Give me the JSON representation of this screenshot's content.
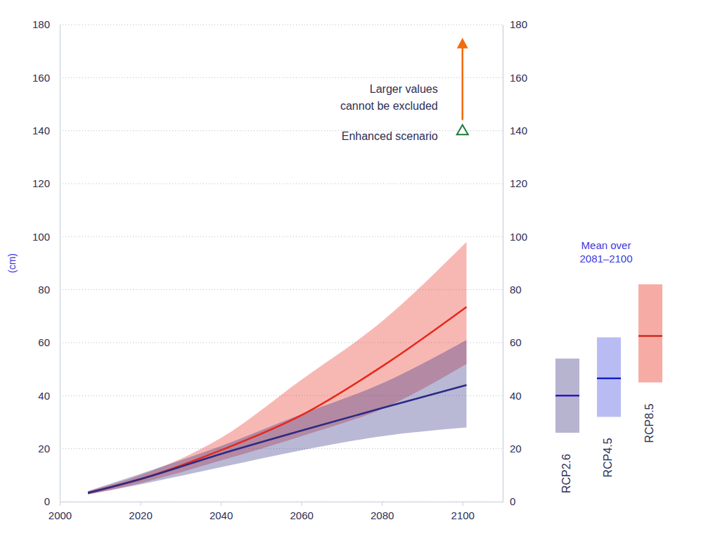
{
  "chart_data": [
    {
      "type": "line",
      "y_label": "(cm)",
      "x": [
        2007,
        2020,
        2040,
        2060,
        2080,
        2101
      ],
      "xlim": [
        2000,
        2110
      ],
      "xticks": [
        2000,
        2020,
        2040,
        2060,
        2080,
        2100
      ],
      "ylim": [
        0,
        180
      ],
      "yticks": [
        0,
        20,
        40,
        60,
        80,
        100,
        120,
        140,
        160,
        180
      ],
      "grid": true,
      "series": [
        {
          "color": "#e8271a",
          "values": [
            3.3,
            8.5,
            19.4,
            32.6,
            51,
            73.5
          ],
          "lower": [
            2.7,
            7,
            15.5,
            24.7,
            35,
            52
          ],
          "upper": [
            4,
            10,
            24,
            46,
            68,
            98
          ]
        },
        {
          "color": "#2b2a83",
          "values": [
            3.3,
            8.5,
            18,
            26.8,
            35.3,
            44
          ],
          "lower": [
            2.7,
            6.5,
            13,
            19.4,
            24.7,
            28
          ],
          "upper": [
            4,
            10.5,
            21,
            33,
            44.6,
            61
          ]
        }
      ],
      "annotations": [
        {
          "text": [
            "Larger values",
            "cannot be excluded"
          ],
          "x": 2100,
          "from": 144,
          "to": 175,
          "color": "#f26c0d",
          "marker": "arrow"
        },
        {
          "text": "Enhanced scenario",
          "x": 2100,
          "value": 140,
          "color": "#1f7a3a",
          "marker": "triangle"
        }
      ]
    },
    {
      "type": "bar",
      "title": [
        "Mean over",
        "2081–2100"
      ],
      "categories": [
        "RCP2.6",
        "RCP4.5",
        "RCP8.5"
      ],
      "low": [
        26,
        32,
        45
      ],
      "high": [
        54,
        62,
        82
      ],
      "values": [
        40,
        46.5,
        62.5
      ],
      "colors": [
        "#b7b4cf",
        "#b9bcf3",
        "#f6aca4"
      ],
      "ylim": [
        0,
        180
      ],
      "yticks": [
        0,
        20,
        40,
        60,
        80,
        100,
        120,
        140,
        160,
        180
      ]
    }
  ]
}
